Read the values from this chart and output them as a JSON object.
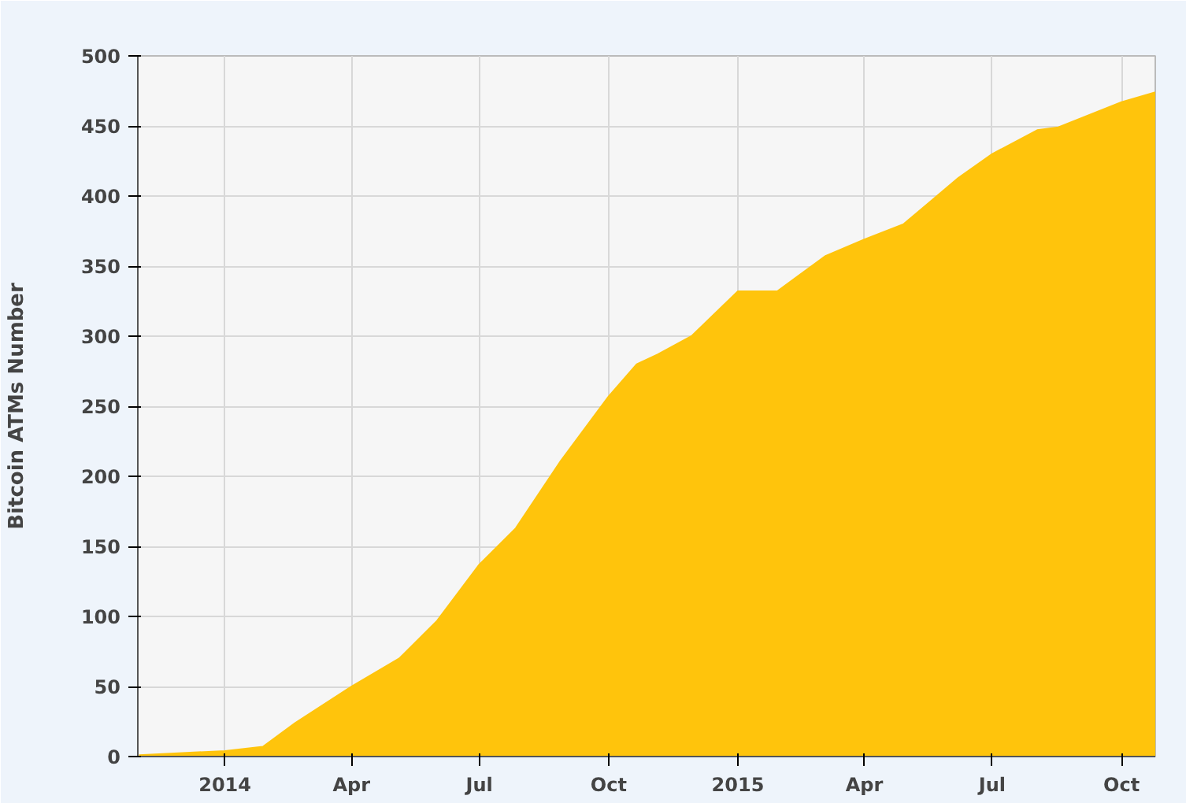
{
  "chart_data": {
    "type": "area",
    "ylabel": "Bitcoin ATMs Number",
    "x": [
      "2013-11-01",
      "2014-01-01",
      "2014-01-28",
      "2014-02-20",
      "2014-04-01",
      "2014-05-05",
      "2014-06-01",
      "2014-07-01",
      "2014-07-27",
      "2014-08-28",
      "2014-10-01",
      "2014-10-21",
      "2014-11-05",
      "2014-11-29",
      "2015-01-01",
      "2015-01-29",
      "2015-03-04",
      "2015-04-01",
      "2015-04-29",
      "2015-06-07",
      "2015-07-01",
      "2015-08-02",
      "2015-08-17",
      "2015-10-01",
      "2015-10-25"
    ],
    "series": [
      {
        "color": "#ffc40c",
        "values": [
          1,
          4,
          7,
          24,
          50,
          70,
          97,
          137,
          163,
          211,
          257,
          280,
          287,
          300,
          332,
          332,
          357,
          369,
          380,
          413,
          430,
          447,
          449,
          467,
          474
        ]
      }
    ],
    "xlim": [
      "2013-10-31",
      "2015-10-25"
    ],
    "xticks": [
      {
        "value": "2014-01-01",
        "label": "2014"
      },
      {
        "value": "2014-04-01",
        "label": "Apr"
      },
      {
        "value": "2014-07-01",
        "label": "Jul"
      },
      {
        "value": "2014-10-01",
        "label": "Oct"
      },
      {
        "value": "2015-01-01",
        "label": "2015"
      },
      {
        "value": "2015-04-01",
        "label": "Apr"
      },
      {
        "value": "2015-07-01",
        "label": "Jul"
      },
      {
        "value": "2015-10-01",
        "label": "Oct"
      }
    ],
    "ylim": [
      0,
      500
    ],
    "yticks": [
      0,
      50,
      100,
      150,
      200,
      250,
      300,
      350,
      400,
      450,
      500
    ],
    "grid": true
  }
}
